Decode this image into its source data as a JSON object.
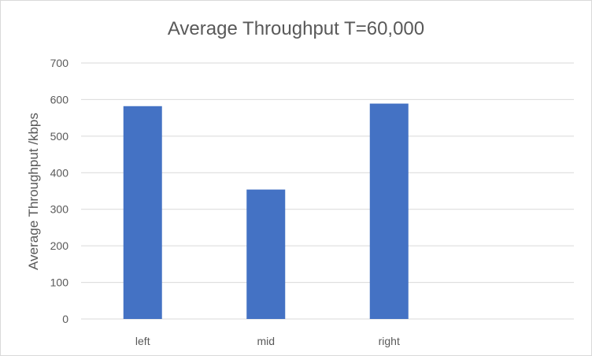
{
  "chart_data": {
    "type": "bar",
    "title": "Average Throughput T=60,000",
    "xlabel": "",
    "ylabel": "Average Throughput /kbps",
    "categories": [
      "left",
      "mid",
      "right",
      ""
    ],
    "values": [
      582,
      354,
      589,
      null
    ],
    "ylim": [
      0,
      700
    ],
    "yticks": [
      "0",
      "100",
      "200",
      "300",
      "400",
      "500",
      "600",
      "700"
    ],
    "grid": true,
    "legend": "none",
    "bar_color": "#4472c4"
  }
}
